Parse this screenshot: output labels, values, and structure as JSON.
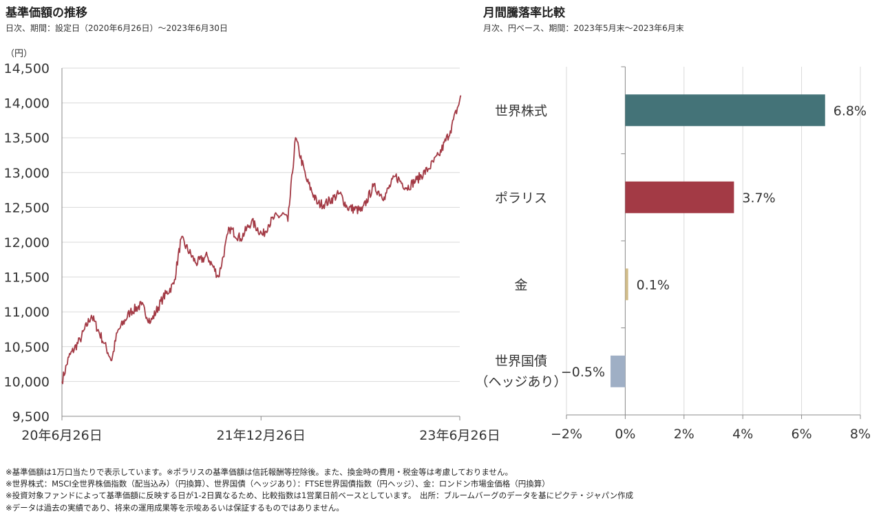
{
  "left_panel": {
    "title": "基準価額の推移",
    "subtitle": "日次、期間：設定日（2020年6月26日）～2023年6月30日"
  },
  "right_panel": {
    "title": "月間騰落率比較",
    "subtitle": "月次、円ベース、期間：2023年5月末～2023年6月末"
  },
  "notes": [
    "※基準価額は1万口当たりで表示しています。※ポラリスの基準価額は信託報酬等控除後。また、換金時の費用・税金等は考慮しておりません。",
    "※世界株式：MSCI全世界株価指数（配当込み）（円換算）、世界国債（ヘッジあり）：FTSE世界国債指数（円ヘッジ）、金：ロンドン市場金価格（円換算）",
    "※投資対象ファンドによって基準価額に反映する日が1-2日異なるため、比較指数は1営業日前ベースとしています。　出所：ブルームバーグのデータを基にピクテ・ジャパン作成",
    "※データは過去の実績であり、将来の運用成果等を示唆あるいは保証するものではありません。"
  ],
  "chart_data": [
    {
      "type": "line",
      "title": "基準価額の推移",
      "ylabel": "（円）",
      "ylim": [
        9500,
        14500
      ],
      "yticks": [
        9500,
        10000,
        10500,
        11000,
        11500,
        12000,
        12500,
        13000,
        13500,
        14000,
        14500
      ],
      "ytick_labels": [
        "9,500",
        "10,000",
        "10,500",
        "11,000",
        "11,500",
        "12,000",
        "12,500",
        "13,000",
        "13,500",
        "14,000",
        "14,500"
      ],
      "xticks": [
        "2020-06-26",
        "2021-12-26",
        "2023-06-26"
      ],
      "xtick_labels": [
        "20年6月26日",
        "21年12月26日",
        "23年6月26日"
      ],
      "grid": "horizontal",
      "color": "#a33a45",
      "series": [
        {
          "x": [
            "2020-06-26",
            "2020-07-15",
            "2020-08-15",
            "2020-09-15",
            "2020-10-20",
            "2020-11-10",
            "2020-11-25",
            "2020-12-31",
            "2021-01-31",
            "2021-02-25",
            "2021-03-31",
            "2021-04-30",
            "2021-05-20",
            "2021-06-30",
            "2021-07-31",
            "2021-08-31",
            "2021-09-30",
            "2021-10-31",
            "2021-11-30",
            "2021-12-31",
            "2022-01-15",
            "2022-01-31",
            "2022-02-28",
            "2022-03-10",
            "2022-03-31",
            "2022-04-30",
            "2022-05-31",
            "2022-06-20",
            "2022-07-31",
            "2022-08-20",
            "2022-09-30",
            "2022-10-31",
            "2022-11-30",
            "2022-12-31",
            "2023-01-31",
            "2023-02-28",
            "2023-03-31",
            "2023-04-30",
            "2023-05-31",
            "2023-06-30"
          ],
          "y": [
            10000,
            10350,
            10600,
            10950,
            10550,
            10300,
            10700,
            11000,
            11100,
            10850,
            11200,
            11400,
            12050,
            11700,
            11800,
            11500,
            12200,
            12050,
            12300,
            12100,
            12250,
            12350,
            12400,
            12300,
            13500,
            12900,
            12550,
            12550,
            12700,
            12500,
            12450,
            12800,
            12650,
            12950,
            12780,
            12900,
            13050,
            13250,
            13600,
            14100
          ]
        }
      ]
    },
    {
      "type": "bar",
      "orientation": "horizontal",
      "title": "月間騰落率比較",
      "xlim": [
        -2,
        8
      ],
      "xticks": [
        -2,
        0,
        2,
        4,
        6,
        8
      ],
      "xtick_labels": [
        "−2%",
        "0%",
        "2%",
        "4%",
        "6%",
        "8%"
      ],
      "grid": "vertical",
      "categories": [
        "世界株式",
        "ポラリス",
        "金",
        "世界国債（ヘッジあり）"
      ],
      "category_lines": [
        [
          "世界株式"
        ],
        [
          "ポラリス"
        ],
        [
          "金"
        ],
        [
          "世界国債",
          "（ヘッジあり）"
        ]
      ],
      "values": [
        6.8,
        3.7,
        0.1,
        -0.5
      ],
      "value_labels": [
        "6.8%",
        "3.7%",
        "0.1%",
        "−0.5%"
      ],
      "colors": [
        "#447378",
        "#a33a45",
        "#d1bc8a",
        "#9fafc5"
      ]
    }
  ]
}
